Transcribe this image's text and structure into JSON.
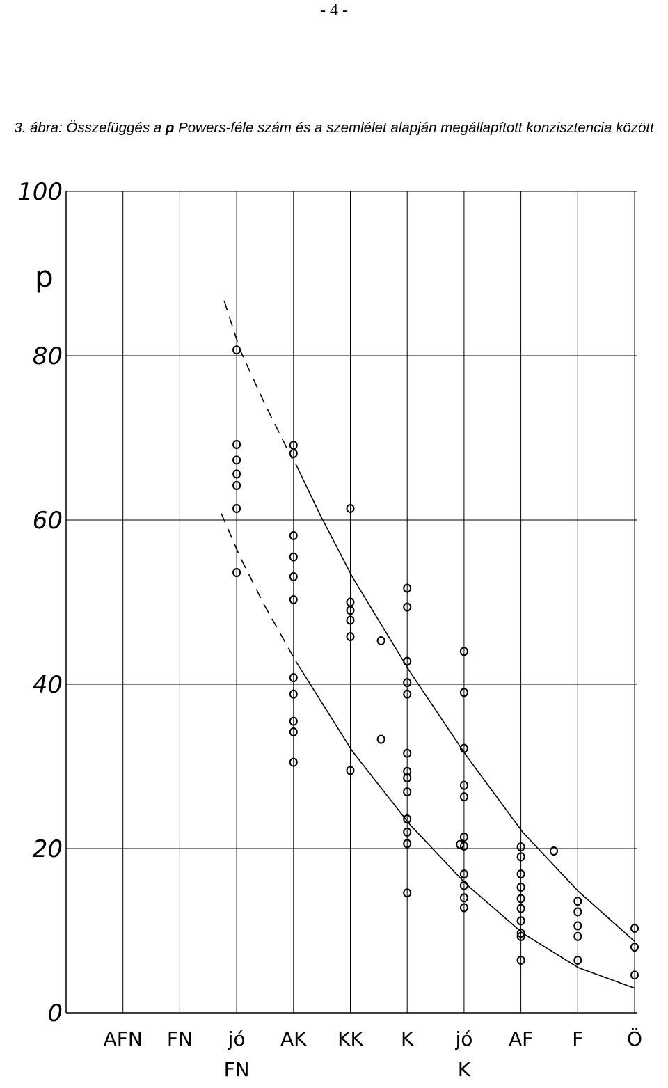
{
  "page_number": "- 4 -",
  "chart_data": {
    "type": "scatter",
    "title_parts": [
      "3. ábra: Összefüggés a ",
      "p",
      " Powers-féle szám és a szemlélet alapján megállapított konzisztencia között"
    ],
    "ylabel": "p",
    "xlim": [
      0,
      10
    ],
    "ylim": [
      0,
      100
    ],
    "yticks": [
      0,
      20,
      40,
      60,
      80,
      100
    ],
    "xticks": [
      {
        "value": 1,
        "label": "AFN"
      },
      {
        "value": 2,
        "label": "FN"
      },
      {
        "value": 3,
        "label": "jó FN"
      },
      {
        "value": 4,
        "label": "AK"
      },
      {
        "value": 5,
        "label": "KK"
      },
      {
        "value": 6,
        "label": "K"
      },
      {
        "value": 7,
        "label": "jó K"
      },
      {
        "value": 8,
        "label": "AF"
      },
      {
        "value": 9,
        "label": "F"
      },
      {
        "value": 10,
        "label": "Ö"
      }
    ],
    "grid": true,
    "color": "#000000",
    "points": {
      "x": [
        3,
        3,
        3,
        3,
        3,
        3,
        3,
        4,
        4,
        4,
        4,
        4,
        4,
        4,
        4,
        4,
        4,
        4,
        5,
        5,
        5,
        5,
        5,
        5,
        5.54,
        5.54,
        6,
        6,
        6,
        6,
        6,
        6,
        6,
        6,
        6,
        6,
        6,
        6,
        6,
        7,
        7,
        7,
        7,
        7,
        7,
        7,
        7,
        7,
        7,
        7,
        6.93,
        8,
        8,
        8,
        8,
        8,
        8,
        8,
        8,
        8,
        8,
        8.58,
        9,
        9,
        9,
        9,
        9,
        10,
        10,
        10
      ],
      "values": [
        80.7,
        69.2,
        67.3,
        65.6,
        64.2,
        61.4,
        53.6,
        69.1,
        68.1,
        58.1,
        55.5,
        53.1,
        50.3,
        40.8,
        38.8,
        35.5,
        34.2,
        30.5,
        61.4,
        50,
        49,
        47.8,
        45.8,
        29.5,
        45.3,
        33.3,
        51.7,
        49.4,
        42.8,
        40.2,
        38.8,
        31.6,
        29.4,
        28.6,
        26.9,
        23.6,
        22,
        20.6,
        14.6,
        44,
        39,
        32.2,
        27.7,
        26.3,
        21.4,
        20.3,
        16.9,
        15.5,
        14,
        12.8,
        20.5,
        20.2,
        19,
        16.9,
        15.3,
        13.9,
        12.7,
        11.2,
        9.7,
        9.3,
        6.4,
        19.7,
        13.6,
        12.3,
        10.6,
        9.3,
        6.4,
        10.3,
        8,
        4.6
      ]
    },
    "curves": [
      {
        "line_style": "dashed",
        "x": [
          2.78,
          3.06,
          3.49,
          3.98
        ],
        "values": [
          86.7,
          80.7,
          74.2,
          67.4
        ]
      },
      {
        "line_style": "solid",
        "x": [
          4.04,
          4.47,
          5.04,
          6.05,
          7.03,
          8.03,
          9.01,
          10
        ],
        "values": [
          66.8,
          60.6,
          53,
          41.5,
          31.4,
          22,
          14.8,
          8.7
        ]
      },
      {
        "line_style": "dashed",
        "x": [
          2.73,
          3.06,
          3.49,
          4.04
        ],
        "values": [
          60.8,
          55.5,
          49.6,
          42.8
        ]
      },
      {
        "line_style": "solid",
        "x": [
          4.04,
          5.04,
          6.05,
          7.03,
          8.03,
          9.01,
          10
        ],
        "values": [
          42.8,
          31.8,
          22.9,
          15.7,
          9.7,
          5.5,
          3
        ]
      }
    ]
  }
}
